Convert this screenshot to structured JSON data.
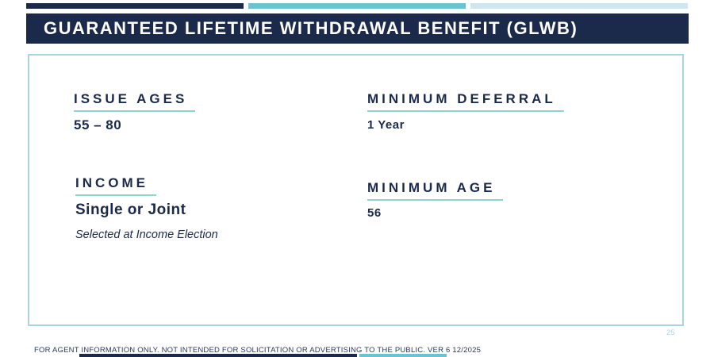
{
  "slide": {
    "title": "GUARANTEED LIFETIME WITHDRAWAL BENEFIT (GLWB)",
    "page_number": "25",
    "footer": "FOR AGENT INFORMATION ONLY. NOT INTENDED FOR SOLICITATION OR ADVERTISING TO THE PUBLIC.  VER 6 12/2025"
  },
  "sections": {
    "issue_ages": {
      "heading": "ISSUE AGES",
      "value": "55 – 80"
    },
    "minimum_deferral": {
      "heading": "MINIMUM DEFERRAL",
      "value": "1 Year"
    },
    "income": {
      "heading": "INCOME",
      "value": "Single or Joint",
      "note": "Selected at Income Election"
    },
    "minimum_age": {
      "heading": "MINIMUM AGE",
      "value": "56"
    }
  },
  "colors": {
    "navy": "#1b2a4a",
    "teal_accent": "#6ac3d2",
    "light_blue_accent": "#cde6ef",
    "underline_teal": "#8fd4cf",
    "box_border": "#a9d6de",
    "page_number_teal": "#a8d8de"
  }
}
